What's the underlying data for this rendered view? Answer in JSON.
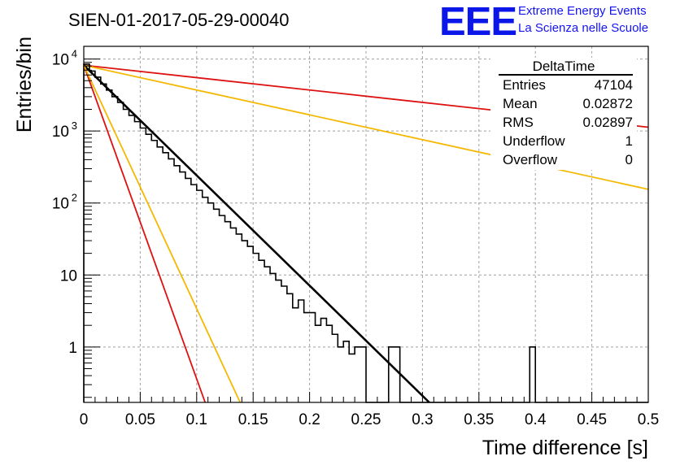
{
  "chart_data": {
    "type": "histogram",
    "title": "SIEN-01-2017-05-29-00040",
    "xlabel": "Time difference [s]",
    "ylabel": "Entries/bin",
    "xlim": [
      0,
      0.5
    ],
    "ylim": [
      0.17,
      15000
    ],
    "yscale": "log",
    "grid": true,
    "x_ticks": [
      "0",
      "0.05",
      "0.1",
      "0.15",
      "0.2",
      "0.25",
      "0.3",
      "0.35",
      "0.4",
      "0.45",
      "0.5"
    ],
    "y_ticks": [
      {
        "value": 1,
        "label": "1"
      },
      {
        "value": 10,
        "label": "10"
      },
      {
        "value": 100,
        "base": "10",
        "exp": "2"
      },
      {
        "value": 1000,
        "base": "10",
        "exp": "3"
      },
      {
        "value": 10000,
        "base": "10",
        "exp": "4"
      }
    ],
    "histogram": {
      "name": "DeltaTime",
      "bin_width": 0.005,
      "bin_start": 0,
      "counts": [
        8500,
        6800,
        5600,
        4500,
        3700,
        3000,
        2500,
        2000,
        1650,
        1350,
        1100,
        900,
        740,
        600,
        500,
        410,
        330,
        270,
        220,
        180,
        150,
        120,
        100,
        82,
        67,
        55,
        45,
        37,
        30,
        25,
        20,
        16,
        13,
        10.5,
        8.5,
        7,
        5.5,
        3.5,
        4.5,
        3,
        3,
        2,
        2.5,
        2,
        1.5,
        1,
        1.2,
        0.8,
        1,
        1,
        0,
        0,
        0,
        0,
        1,
        1,
        0,
        0,
        0,
        0,
        0,
        0,
        0,
        0,
        0,
        0,
        0,
        0,
        0,
        0,
        0,
        0,
        0,
        0,
        0,
        0,
        0,
        0,
        0,
        1,
        0,
        0,
        0,
        0,
        0,
        0,
        0,
        0,
        0,
        0,
        0,
        0,
        0,
        0,
        0,
        0,
        0,
        0,
        0,
        0
      ]
    },
    "fits": [
      {
        "name": "fit",
        "color": "#000000",
        "width": 2.6,
        "x0": 0.0,
        "y0": 8200,
        "x1": 0.306,
        "y1": 0.17
      },
      {
        "name": "red-slow",
        "color": "#dd1111",
        "width": 1.8,
        "x0": 0.0,
        "y0": 8200,
        "x1": 0.5,
        "y1": 1130
      },
      {
        "name": "orange-slow",
        "color": "#f5b800",
        "width": 1.8,
        "x0": 0.0,
        "y0": 8200,
        "x1": 0.5,
        "y1": 155
      },
      {
        "name": "red-fast",
        "color": "#dd1111",
        "width": 1.8,
        "x0": 0.0,
        "y0": 8200,
        "x1": 0.1075,
        "y1": 0.17
      },
      {
        "name": "orange-fast",
        "color": "#f5b800",
        "width": 1.8,
        "x0": 0.0,
        "y0": 8200,
        "x1": 0.1385,
        "y1": 0.17
      }
    ],
    "stats": {
      "title": "DeltaTime",
      "rows": [
        {
          "label": "Entries",
          "value": "47104"
        },
        {
          "label": "Mean",
          "value": "0.02872"
        },
        {
          "label": "RMS",
          "value": "0.02897"
        },
        {
          "label": "Underflow",
          "value": "1"
        },
        {
          "label": "Overflow",
          "value": "0"
        }
      ]
    }
  },
  "logo": {
    "text": "EEE",
    "line1": "Extreme Energy Events",
    "line2": "La Scienza nelle Scuole",
    "color": "#0b16e8"
  }
}
